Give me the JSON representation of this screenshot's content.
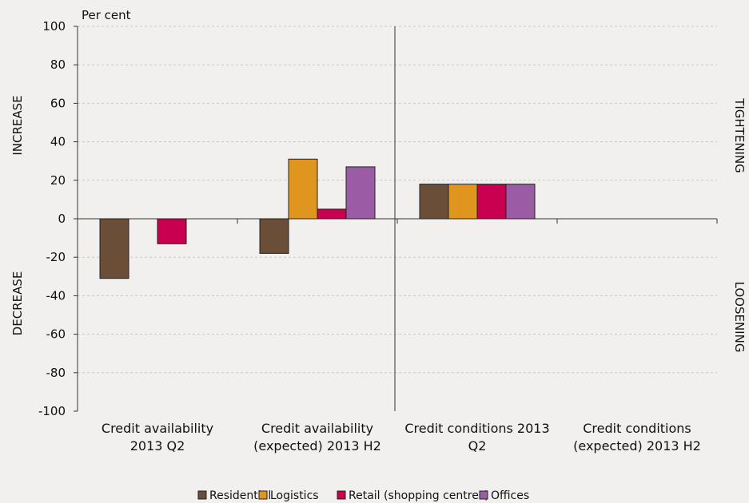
{
  "chart_data": {
    "type": "bar",
    "unit_label": "Per cent",
    "left_labels": {
      "upper": "INCREASE",
      "lower": "DECREASE"
    },
    "right_labels": {
      "upper": "TIGHTENING",
      "lower": "LOOSENING"
    },
    "categories": [
      [
        "Credit availability",
        "2013 Q2"
      ],
      [
        "Credit availability",
        "(expected) 2013 H2"
      ],
      [
        "Credit conditions 2013",
        "Q2"
      ],
      [
        "Credit conditions",
        "(expected) 2013 H2"
      ]
    ],
    "series": [
      {
        "name": "Residential",
        "color": "#6b4e37",
        "values": [
          -31,
          -18,
          18,
          null
        ]
      },
      {
        "name": "Logistics",
        "color": "#e0961e",
        "values": [
          null,
          31,
          18,
          null
        ]
      },
      {
        "name": "Retail (shopping centres)",
        "color": "#c8004f",
        "values": [
          -13,
          5,
          18,
          null
        ]
      },
      {
        "name": "Offices",
        "color": "#9b5ba5",
        "values": [
          null,
          27,
          18,
          null
        ]
      }
    ],
    "ylim": [
      -100,
      100
    ],
    "yticks": [
      100,
      80,
      60,
      40,
      20,
      0,
      -20,
      -40,
      -60,
      -80,
      -100
    ],
    "grid": true,
    "legend_position": "bottom"
  }
}
